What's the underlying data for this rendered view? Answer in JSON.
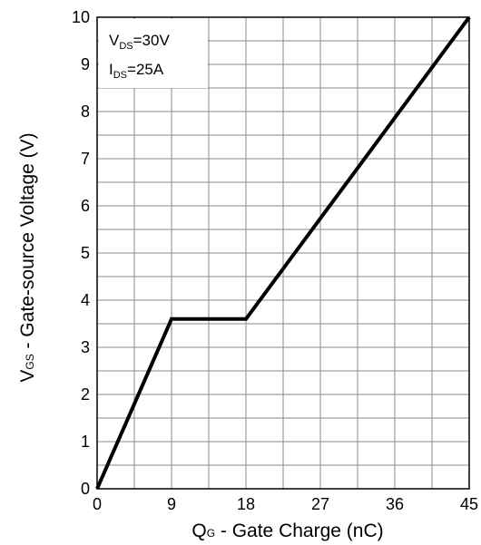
{
  "chart_data": {
    "type": "line",
    "title": "",
    "xlabel": {
      "symbol": "Q",
      "sub": "G",
      "text": " - Gate Charge (nC)"
    },
    "ylabel": {
      "symbol": "V",
      "sub": "GS",
      "text": " - Gate-source Voltage (V)"
    },
    "xlim": [
      0,
      45
    ],
    "ylim": [
      0,
      10
    ],
    "xticks": [
      0,
      9,
      18,
      27,
      36,
      45
    ],
    "xtick_labels": [
      "0",
      "9",
      "18",
      "27",
      "36",
      "45"
    ],
    "yticks": [
      0,
      1,
      2,
      3,
      4,
      5,
      6,
      7,
      8,
      9,
      10
    ],
    "ytick_labels": [
      "0",
      "1",
      "2",
      "3",
      "4",
      "5",
      "6",
      "7",
      "8",
      "9",
      "10"
    ],
    "grid": true,
    "series": [
      {
        "x": [
          0,
          9,
          18,
          45
        ],
        "y": [
          0,
          3.6,
          3.6,
          10
        ]
      }
    ],
    "annotations": [
      {
        "symbol": "V",
        "sub": "DS",
        "value": "=30V"
      },
      {
        "symbol": "I",
        "sub": "DS",
        "value": "=25A"
      }
    ]
  }
}
